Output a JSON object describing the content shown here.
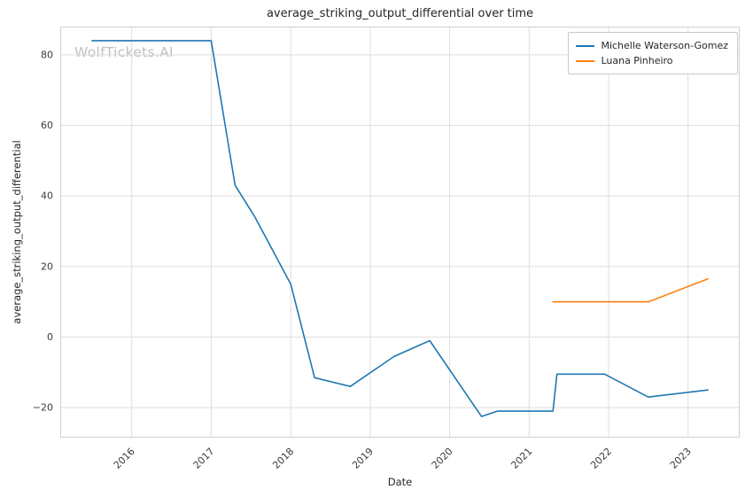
{
  "title": "average_striking_output_differential over time",
  "watermark": "WolfTickets.AI",
  "xlabel": "Date",
  "ylabel": "average_striking_output_differential",
  "chart_data": {
    "type": "line",
    "title": "average_striking_output_differential over time",
    "xlabel": "Date",
    "ylabel": "average_striking_output_differential",
    "xlim": [
      2015.1,
      2023.65
    ],
    "ylim": [
      -28.5,
      88
    ],
    "x_ticks": [
      2016,
      2017,
      2018,
      2019,
      2020,
      2021,
      2022,
      2023
    ],
    "y_ticks": [
      -20,
      0,
      20,
      40,
      60,
      80
    ],
    "grid": true,
    "legend_position": "upper right",
    "series": [
      {
        "name": "Michelle Waterson-Gomez",
        "color": "#1f77b4",
        "points": [
          [
            2015.5,
            84
          ],
          [
            2017.0,
            84
          ],
          [
            2017.3,
            43
          ],
          [
            2017.55,
            34
          ],
          [
            2018.0,
            15
          ],
          [
            2018.3,
            -11.5
          ],
          [
            2018.75,
            -14
          ],
          [
            2019.3,
            -5.5
          ],
          [
            2019.75,
            -1
          ],
          [
            2020.4,
            -22.5
          ],
          [
            2020.6,
            -21
          ],
          [
            2021.3,
            -21
          ],
          [
            2021.35,
            -10.5
          ],
          [
            2021.95,
            -10.5
          ],
          [
            2022.5,
            -17
          ],
          [
            2023.25,
            -15
          ]
        ]
      },
      {
        "name": "Luana Pinheiro",
        "color": "#ff7f0e",
        "points": [
          [
            2021.3,
            10
          ],
          [
            2022.5,
            10
          ],
          [
            2023.25,
            16.5
          ]
        ]
      }
    ]
  }
}
